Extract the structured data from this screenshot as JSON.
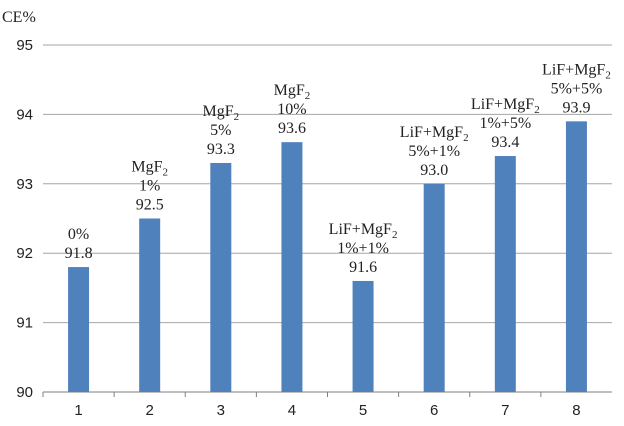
{
  "chart_data": {
    "type": "bar",
    "ylabel": "CE%",
    "ylim": [
      90,
      95
    ],
    "yticks": [
      90,
      91,
      92,
      93,
      94,
      95
    ],
    "categories": [
      "1",
      "2",
      "3",
      "4",
      "5",
      "6",
      "7",
      "8"
    ],
    "values": [
      91.8,
      92.5,
      93.3,
      93.6,
      91.6,
      93.0,
      93.4,
      93.9
    ],
    "value_labels": [
      "91.8",
      "92.5",
      "93.3",
      "93.6",
      "91.6",
      "93.0",
      "93.4",
      "93.9"
    ],
    "annotations": [
      [
        {
          "text": "0%"
        }
      ],
      [
        {
          "text": "MgF",
          "sub": "2"
        },
        {
          "text": "1%"
        }
      ],
      [
        {
          "text": "MgF",
          "sub": "2"
        },
        {
          "text": "5%"
        }
      ],
      [
        {
          "text": "MgF",
          "sub": "2"
        },
        {
          "text": "10%"
        }
      ],
      [
        {
          "text": "LiF+MgF",
          "sub": "2"
        },
        {
          "text": "1%+1%"
        }
      ],
      [
        {
          "text": "LiF+MgF",
          "sub": "2"
        },
        {
          "text": "5%+1%"
        }
      ],
      [
        {
          "text": "LiF+MgF",
          "sub": "2"
        },
        {
          "text": "1%+5%"
        }
      ],
      [
        {
          "text": "LiF+MgF",
          "sub": "2"
        },
        {
          "text": "5%+5%"
        }
      ]
    ],
    "grid": true,
    "colors": {
      "bar": "#4f81bd",
      "grid": "#a6a6a6",
      "axis": "#7f7f7f"
    }
  }
}
